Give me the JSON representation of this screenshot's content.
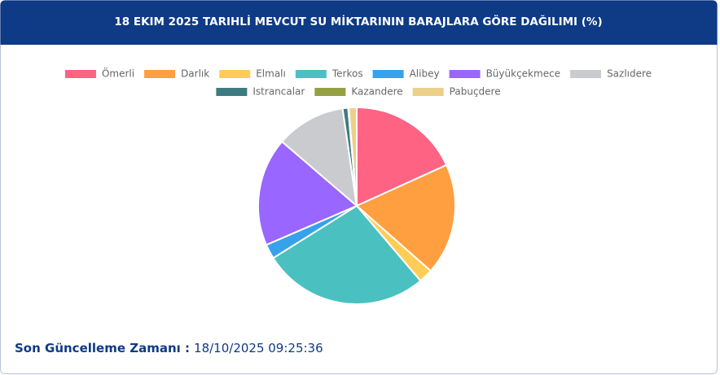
{
  "chart_data": {
    "type": "pie",
    "title": "18 EKIM 2025 TARIHLİ MEVCUT SU MİKTARININ BARAJLARA GÖRE DAĞILIMI (%)",
    "categories": [
      "Ömerli",
      "Darlık",
      "Elmalı",
      "Terkos",
      "Alibey",
      "Büyükçekmece",
      "Sazlıdere",
      "Istrancalar",
      "Kazandere",
      "Pabuçdere"
    ],
    "values": [
      18.2,
      18.3,
      2.3,
      27.3,
      2.4,
      17.8,
      11.4,
      0.9,
      0.1,
      1.3
    ],
    "colors": [
      "#ff6384",
      "#ff9f40",
      "#ffcd56",
      "#4bc0c0",
      "#36a2eb",
      "#9966ff",
      "#c9cbcf",
      "#3e7b80",
      "#94a042",
      "#ecd08a"
    ]
  },
  "footer": {
    "label": "Son Güncelleme Zamanı :",
    "value": "18/10/2025 09:25:36"
  }
}
